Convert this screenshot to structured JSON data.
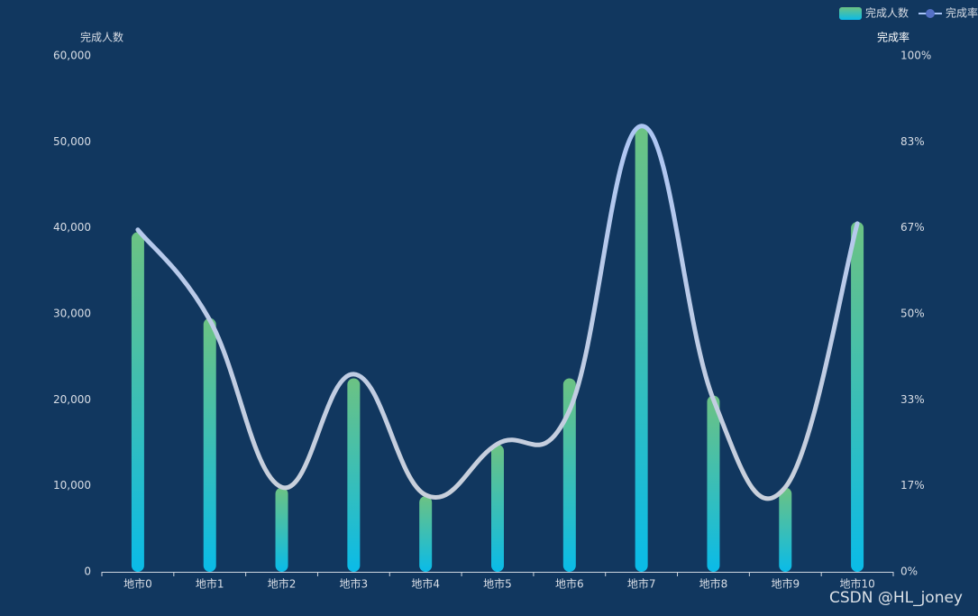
{
  "chart_data": {
    "type": "bar",
    "y_label": "完成人数",
    "y2_label": "完成率",
    "categories": [
      "地市0",
      "地市1",
      "地市2",
      "地市3",
      "地市4",
      "地市5",
      "地市6",
      "地市7",
      "地市8",
      "地市9",
      "地市10"
    ],
    "series": [
      {
        "name": "完成人数",
        "type": "bar",
        "color": [
          "#6cc283",
          "#0abbe8"
        ],
        "values": [
          39500,
          29500,
          9800,
          22500,
          8800,
          14800,
          22500,
          51700,
          20500,
          9800,
          40700
        ]
      },
      {
        "name": "完成率",
        "type": "line",
        "axis": "y2",
        "color": [
          "#a8c4f8",
          "#cfd2d6"
        ],
        "marker_color": "#5470c6",
        "values": [
          66.3,
          48.8,
          16.4,
          38.3,
          14.9,
          24.8,
          31.3,
          86.4,
          33.4,
          16.4,
          67.5
        ]
      }
    ],
    "ylim": [
      0,
      60000
    ],
    "yticks": [
      0,
      {
        "value": 10000,
        "label": "10,000"
      },
      {
        "value": 20000,
        "label": "20,000"
      },
      {
        "value": 30000,
        "label": "30,000"
      },
      {
        "value": 40000,
        "label": "40,000"
      },
      {
        "value": 50000,
        "label": "50,000"
      },
      {
        "value": 60000,
        "label": "60,000"
      }
    ],
    "y2lim": [
      0,
      100
    ],
    "y2ticks": [
      {
        "value": 0,
        "label": "0%"
      },
      {
        "value": 16.67,
        "label": "17%"
      },
      {
        "value": 33.33,
        "label": "33%"
      },
      {
        "value": 50,
        "label": "50%"
      },
      {
        "value": 66.67,
        "label": "67%"
      },
      {
        "value": 83.33,
        "label": "83%"
      },
      {
        "value": 100,
        "label": "100%"
      }
    ],
    "grid": false,
    "legend": "top-right"
  },
  "watermark": "CSDN @HL_joney"
}
